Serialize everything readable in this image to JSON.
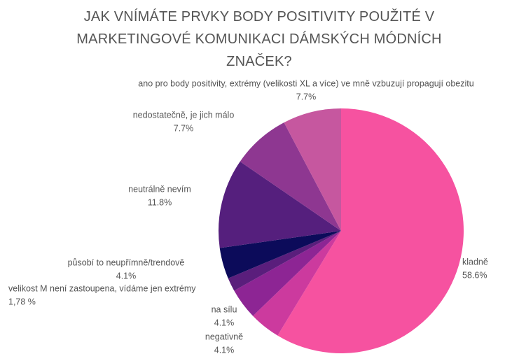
{
  "chart_data": {
    "type": "pie",
    "title": "JAK VNÍMÁTE PRVKY BODY POSITIVITY POUŽITÉ V MARKETINGOVÉ KOMUNIKACI DÁMSKÝCH MÓDNÍCH ZNAČEK?",
    "categories": [
      "kladně",
      "negativně",
      "na sílu",
      "velikost M není zastoupena, vídáme jen extrémy",
      "působí to neupřímně/trendově",
      "neutrálně nevím",
      "nedostatečně, je jich málo",
      "ano pro body positivity, extrémy (velikosti XL a více) ve mně vzbuzují propagují obezitu"
    ],
    "values": [
      58.6,
      4.1,
      4.1,
      1.78,
      4.1,
      11.8,
      7.7,
      7.7
    ],
    "value_labels": [
      "58.6%",
      "4.1%",
      "4.1%",
      "1,78 %",
      "4.1%",
      "11.8%",
      "7.7%",
      "7.7%"
    ],
    "colors": [
      "#f652a0",
      "#cc3a9e",
      "#8d2594",
      "#5a1e7c",
      "#0c0b5a",
      "#551f7d",
      "#8e3791",
      "#c6579f"
    ]
  }
}
